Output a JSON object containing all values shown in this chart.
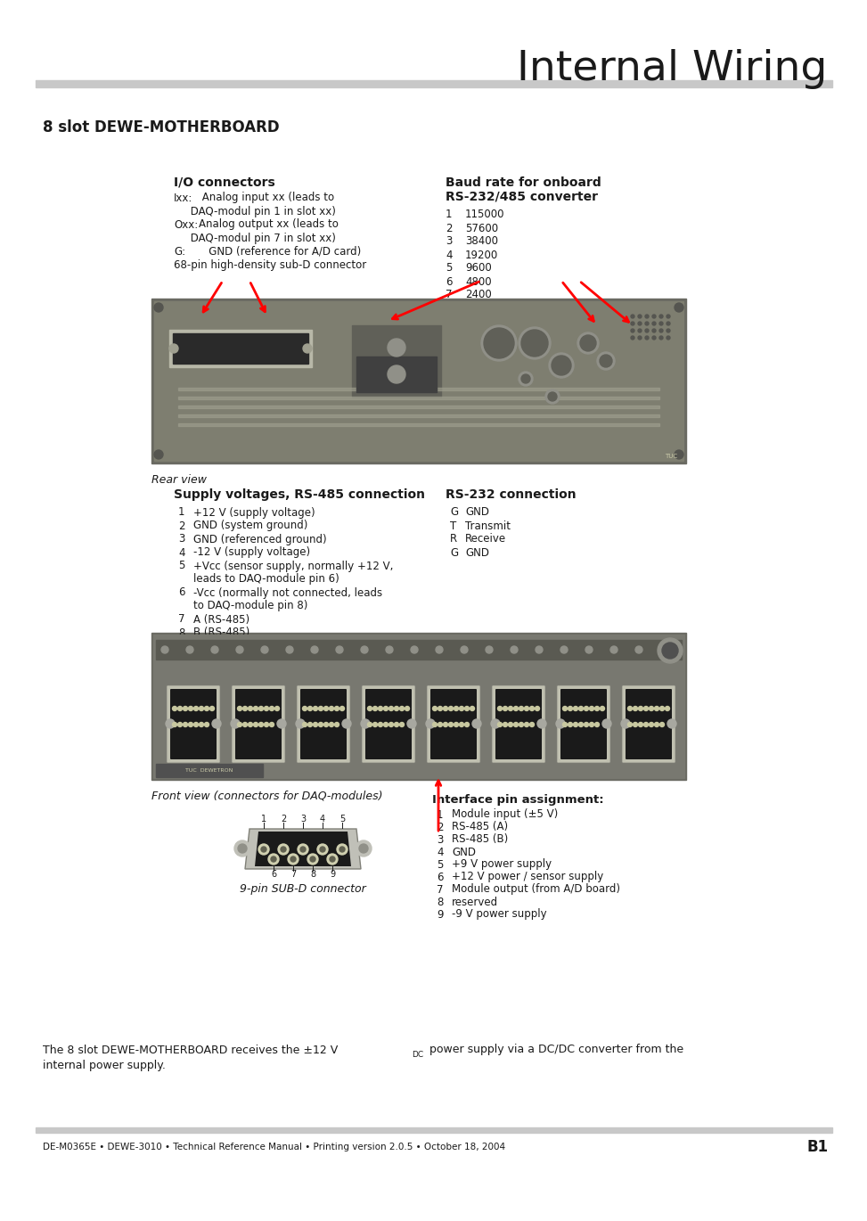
{
  "title": "Internal Wiring",
  "section_title": "8 slot DEWE-MOTHERBOARD",
  "bg_color": "#ffffff",
  "header_bar_color": "#c8c8c8",
  "footer_bar_color": "#c8c8c8",
  "title_color": "#1a1a1a",
  "text_color": "#1a1a1a",
  "io_connectors_title": "I/O connectors",
  "io_connectors_lines": [
    [
      "Ixx:",
      " Analog input xx (leads to",
      false
    ],
    [
      "",
      "     DAQ-modul pin 1 in slot xx)",
      false
    ],
    [
      "Oxx:",
      "Analog output xx (leads to",
      false
    ],
    [
      "",
      "     DAQ-modul pin 7 in slot xx)",
      false
    ],
    [
      "G:",
      "   GND (reference for A/D card)",
      false
    ],
    [
      "",
      "68-pin high-density sub-D connector",
      false
    ]
  ],
  "baud_rate_line1": "Baud rate for onboard",
  "baud_rate_line2": "RS-232/485 converter",
  "baud_rate_entries": [
    [
      "1",
      "115000"
    ],
    [
      "2",
      "57600"
    ],
    [
      "3",
      "38400"
    ],
    [
      "4",
      "19200"
    ],
    [
      "5",
      "9600"
    ],
    [
      "6",
      "4800"
    ],
    [
      "7",
      "2400"
    ]
  ],
  "rear_view_label": "Rear view",
  "supply_title": "Supply voltages, RS-485 connection",
  "supply_entries": [
    [
      "1",
      "+12 V (supply voltage)"
    ],
    [
      "2",
      "GND (system ground)"
    ],
    [
      "3",
      "GND (referenced ground)"
    ],
    [
      "4",
      "-12 V (supply voltage)"
    ],
    [
      "5",
      "+Vcc (sensor supply, normally +12 V,"
    ],
    [
      "",
      "leads to DAQ-module pin 6)"
    ],
    [
      "6",
      "-Vcc (normally not connected, leads"
    ],
    [
      "",
      "to DAQ-module pin 8)"
    ],
    [
      "7",
      "A (RS-485)"
    ],
    [
      "8",
      "B (RS-485)"
    ]
  ],
  "rs232_title": "RS-232 connection",
  "rs232_entries": [
    [
      "G",
      "GND"
    ],
    [
      "T",
      "Transmit"
    ],
    [
      "R",
      "Receive"
    ],
    [
      "G",
      "GND"
    ]
  ],
  "front_view_label": "Front view (connectors for DAQ-modules)",
  "subd_label": "9-pin SUB-D connector",
  "subd_pin_nums_top": [
    "1",
    "2",
    "3",
    "4",
    "5"
  ],
  "subd_pin_nums_bot": [
    "6",
    "7",
    "8",
    "9"
  ],
  "interface_title": "Interface pin assignment:",
  "interface_entries": [
    [
      "1",
      "Module input (±5 V)"
    ],
    [
      "2",
      "RS-485 (A)"
    ],
    [
      "3",
      "RS-485 (B)"
    ],
    [
      "4",
      "GND"
    ],
    [
      "5",
      "+9 V power supply"
    ],
    [
      "6",
      "+12 V power / sensor supply"
    ],
    [
      "7",
      "Module output (from A/D board)"
    ],
    [
      "8",
      "reserved"
    ],
    [
      "9",
      "-9 V power supply"
    ]
  ],
  "bottom_line1a": "The 8 slot DEWE-MOTHERBOARD receives the ±12 V",
  "bottom_line1b": " power supply via a DC/DC converter from the",
  "bottom_line2": "internal power supply.",
  "footer_left": "DE-M0365E • DEWE-3010 • Technical Reference Manual • Printing version 2.0.5 • October 18, 2004",
  "footer_right": "B1",
  "pcb1_color": "#888880",
  "pcb1_dark": "#5a5a52",
  "pcb2_color": "#888880",
  "pcb2_dark": "#5a5a52"
}
